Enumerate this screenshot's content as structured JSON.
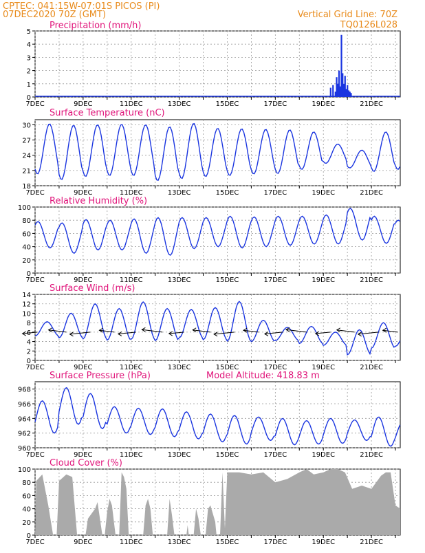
{
  "header": {
    "station": "CPTEC:   041:15W-07:01S   PICOS (PI)",
    "run": "07DEC2020 70Z (GMT)",
    "grid_note": "Vertical Grid Line: 70Z",
    "code": "TQ0126L028"
  },
  "colors": {
    "header": "#e88a1a",
    "title": "#e0147a",
    "line": "#1a35e0",
    "bar": "#1a35e0",
    "cloud": "#aaaaaa",
    "grid": "#999999"
  },
  "chart_data": [
    {
      "type": "bar",
      "title": "Precipitation (mm/h)",
      "ylim": [
        0,
        5
      ],
      "yticks": [
        "0",
        "1",
        "2",
        "3",
        "4",
        "5"
      ],
      "xticks": [
        "7DEC",
        "9DEC",
        "11DEC",
        "13DEC",
        "15DEC",
        "17DEC",
        "19DEC",
        "21DEC"
      ],
      "xlim_days": [
        7,
        22.2
      ],
      "points": [
        [
          8.5,
          0.05
        ],
        [
          17.6,
          0.05
        ],
        [
          19.3,
          0.7
        ],
        [
          19.4,
          0.9
        ],
        [
          19.5,
          0.4
        ],
        [
          19.55,
          1.5
        ],
        [
          19.6,
          1.0
        ],
        [
          19.65,
          2.0
        ],
        [
          19.7,
          0.8
        ],
        [
          19.75,
          4.7
        ],
        [
          19.8,
          1.8
        ],
        [
          19.85,
          1.0
        ],
        [
          19.9,
          1.6
        ],
        [
          19.95,
          0.6
        ],
        [
          20.0,
          0.9
        ],
        [
          20.05,
          0.5
        ],
        [
          20.1,
          0.4
        ],
        [
          20.15,
          0.3
        ]
      ]
    },
    {
      "type": "line",
      "title": "Surface Temperature (nC)",
      "ylim": [
        18,
        31
      ],
      "yticks": [
        "18",
        "21",
        "24",
        "27",
        "30"
      ],
      "xticks": [
        "7DEC",
        "9DEC",
        "11DEC",
        "13DEC",
        "15DEC",
        "17DEC",
        "19DEC",
        "21DEC"
      ],
      "xlim_days": [
        7,
        22.2
      ],
      "max": [
        30.2,
        29.9,
        30.0,
        30.1,
        30.0,
        29.6,
        30.3,
        29.3,
        29.2,
        29.1,
        29.0,
        28.6,
        26.2,
        25.0,
        28.6,
        28.8
      ],
      "min": [
        20.3,
        19.2,
        19.8,
        20.0,
        20.0,
        19.0,
        19.4,
        19.8,
        20.0,
        20.3,
        20.4,
        21.2,
        22.4,
        21.5,
        20.8,
        21.2
      ],
      "phase": 0.6
    },
    {
      "type": "line",
      "title": "Relative Humidity (%)",
      "ylim": [
        0,
        100
      ],
      "yticks": [
        "0",
        "20",
        "40",
        "60",
        "80",
        "100"
      ],
      "xticks": [
        "7DEC",
        "9DEC",
        "11DEC",
        "13DEC",
        "15DEC",
        "17DEC",
        "19DEC",
        "21DEC"
      ],
      "xlim_days": [
        7,
        22.2
      ],
      "max": [
        78,
        76,
        81,
        80,
        82,
        84,
        84,
        84,
        86,
        85,
        86,
        86,
        88,
        98,
        86,
        80
      ],
      "min": [
        38,
        30,
        35,
        35,
        30,
        27,
        37,
        40,
        38,
        40,
        42,
        44,
        44,
        50,
        45,
        48
      ],
      "phase": 0.12
    },
    {
      "type": "line",
      "title": "Surface Wind (m/s)",
      "ylim": [
        0,
        14
      ],
      "yticks": [
        "0",
        "2",
        "4",
        "6",
        "8",
        "10",
        "12",
        "14"
      ],
      "xticks": [
        "7DEC",
        "9DEC",
        "11DEC",
        "13DEC",
        "15DEC",
        "17DEC",
        "19DEC",
        "21DEC"
      ],
      "xlim_days": [
        7,
        22.2
      ],
      "max": [
        8.2,
        10.0,
        12.0,
        11.0,
        12.4,
        11.0,
        10.8,
        11.2,
        12.5,
        8.5,
        7.0,
        7.2,
        6.0,
        6.5,
        8.0,
        6.8
      ],
      "min": [
        5.2,
        4.8,
        4.6,
        4.3,
        4.5,
        4.2,
        4.8,
        4.4,
        4.1,
        4.0,
        4.2,
        3.6,
        3.2,
        1.2,
        2.6,
        3.0
      ],
      "phase": 0.5,
      "arrows_at_days": [
        7.1,
        8.3,
        9.3,
        10.3,
        11.2,
        12.3,
        13.2,
        14.3,
        15.3,
        16.3,
        17.3,
        18.3,
        19.3,
        20.3,
        21.3,
        22.1
      ]
    },
    {
      "type": "line",
      "title": "Surface Pressure (hPa)",
      "subtitle": "Model Altitude: 418.83 m",
      "ylim": [
        960,
        969
      ],
      "yticks": [
        "960",
        "962",
        "964",
        "966",
        "968"
      ],
      "xticks": [
        "7DEC",
        "9DEC",
        "11DEC",
        "13DEC",
        "15DEC",
        "17DEC",
        "19DEC",
        "21DEC"
      ],
      "xlim_days": [
        7,
        22.2
      ],
      "max": [
        966.4,
        968.2,
        967.4,
        965.6,
        965.4,
        965.3,
        964.9,
        964.6,
        964.4,
        964.2,
        964.0,
        963.7,
        964.0,
        963.8,
        964.2,
        963.5
      ],
      "min": [
        962.0,
        963.2,
        962.6,
        962.0,
        961.8,
        961.5,
        961.2,
        960.8,
        960.5,
        961.0,
        960.4,
        960.5,
        960.6,
        961.0,
        960.2,
        960.3
      ],
      "phase": 0.3
    },
    {
      "type": "area",
      "title": "Cloud Cover (%)",
      "ylim": [
        0,
        100
      ],
      "yticks": [
        "0",
        "20",
        "40",
        "60",
        "80",
        "100"
      ],
      "xticks": [
        "7DEC",
        "9DEC",
        "11DEC",
        "13DEC",
        "15DEC",
        "17DEC",
        "19DEC",
        "21DEC"
      ],
      "xlim_days": [
        7,
        22.2
      ],
      "points": [
        [
          7.0,
          0
        ],
        [
          7.05,
          82
        ],
        [
          7.3,
          92
        ],
        [
          7.55,
          45
        ],
        [
          7.75,
          0
        ],
        [
          7.9,
          0
        ],
        [
          8.0,
          82
        ],
        [
          8.3,
          92
        ],
        [
          8.55,
          88
        ],
        [
          8.75,
          0
        ],
        [
          9.1,
          0
        ],
        [
          9.2,
          25
        ],
        [
          9.5,
          40
        ],
        [
          9.6,
          50
        ],
        [
          9.8,
          0
        ],
        [
          9.9,
          0
        ],
        [
          10.0,
          35
        ],
        [
          10.1,
          55
        ],
        [
          10.2,
          45
        ],
        [
          10.35,
          0
        ],
        [
          10.5,
          0
        ],
        [
          10.6,
          95
        ],
        [
          10.7,
          88
        ],
        [
          10.8,
          70
        ],
        [
          10.9,
          0
        ],
        [
          11.5,
          0
        ],
        [
          11.6,
          45
        ],
        [
          11.7,
          55
        ],
        [
          11.8,
          40
        ],
        [
          11.9,
          0
        ],
        [
          12.5,
          0
        ],
        [
          12.6,
          55
        ],
        [
          12.7,
          30
        ],
        [
          12.8,
          0
        ],
        [
          13.3,
          0
        ],
        [
          13.35,
          15
        ],
        [
          13.4,
          0
        ],
        [
          13.6,
          0
        ],
        [
          13.7,
          40
        ],
        [
          13.8,
          25
        ],
        [
          13.9,
          0
        ],
        [
          14.1,
          0
        ],
        [
          14.2,
          40
        ],
        [
          14.3,
          45
        ],
        [
          14.5,
          20
        ],
        [
          14.55,
          0
        ],
        [
          14.7,
          0
        ],
        [
          14.8,
          95
        ],
        [
          14.9,
          10
        ],
        [
          15.0,
          95
        ],
        [
          15.5,
          95
        ],
        [
          16.0,
          92
        ],
        [
          16.5,
          95
        ],
        [
          17.0,
          80
        ],
        [
          17.5,
          85
        ],
        [
          18.0,
          95
        ],
        [
          18.3,
          100
        ],
        [
          18.6,
          92
        ],
        [
          19.0,
          95
        ],
        [
          19.3,
          100
        ],
        [
          19.6,
          100
        ],
        [
          19.9,
          95
        ],
        [
          20.2,
          70
        ],
        [
          20.6,
          75
        ],
        [
          21.0,
          70
        ],
        [
          21.4,
          90
        ],
        [
          21.6,
          95
        ],
        [
          21.8,
          95
        ],
        [
          22.0,
          45
        ],
        [
          22.2,
          40
        ]
      ]
    }
  ]
}
